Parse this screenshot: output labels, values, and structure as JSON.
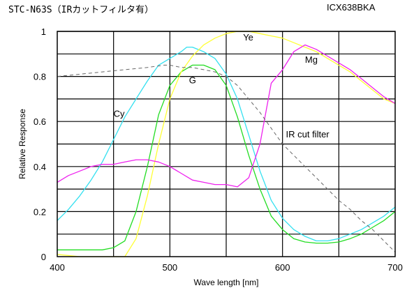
{
  "header": {
    "left_title": "STC-N63S（IRカットフィルタ有）",
    "right_title": "ICX638BKA"
  },
  "chart_data": {
    "type": "line",
    "title": "STC-N63S（IRカットフィルタ有）",
    "subtitle": "ICX638BKA",
    "xlabel": "Wave length [nm]",
    "ylabel": "Relative Response",
    "xlim": [
      400,
      700
    ],
    "ylim": [
      0,
      1
    ],
    "x_ticks": [
      400,
      500,
      600,
      700
    ],
    "y_ticks": [
      0,
      0.2,
      0.4,
      0.6,
      0.8,
      1
    ],
    "y_tick_labels": [
      "0",
      "0.2",
      "0.4",
      "0.6",
      "0.8",
      "1"
    ],
    "grid": true,
    "legend": "none",
    "series": [
      {
        "name": "Cy",
        "color": "#33e0f0",
        "dash": "solid",
        "label_at": [
          450,
          0.62
        ],
        "points": [
          [
            400,
            0.16
          ],
          [
            410,
            0.21
          ],
          [
            420,
            0.27
          ],
          [
            430,
            0.34
          ],
          [
            440,
            0.42
          ],
          [
            450,
            0.52
          ],
          [
            460,
            0.62
          ],
          [
            470,
            0.7
          ],
          [
            480,
            0.78
          ],
          [
            490,
            0.85
          ],
          [
            500,
            0.88
          ],
          [
            510,
            0.91
          ],
          [
            515,
            0.93
          ],
          [
            520,
            0.93
          ],
          [
            530,
            0.91
          ],
          [
            540,
            0.88
          ],
          [
            550,
            0.81
          ],
          [
            560,
            0.7
          ],
          [
            570,
            0.54
          ],
          [
            580,
            0.38
          ],
          [
            590,
            0.25
          ],
          [
            600,
            0.17
          ],
          [
            610,
            0.12
          ],
          [
            620,
            0.09
          ],
          [
            630,
            0.07
          ],
          [
            640,
            0.07
          ],
          [
            650,
            0.08
          ],
          [
            660,
            0.1
          ],
          [
            670,
            0.12
          ],
          [
            680,
            0.15
          ],
          [
            690,
            0.18
          ],
          [
            700,
            0.22
          ]
        ]
      },
      {
        "name": "G",
        "color": "#22dd22",
        "dash": "solid",
        "label_at": [
          517,
          0.77
        ],
        "points": [
          [
            400,
            0.03
          ],
          [
            420,
            0.03
          ],
          [
            440,
            0.03
          ],
          [
            450,
            0.04
          ],
          [
            460,
            0.07
          ],
          [
            470,
            0.2
          ],
          [
            480,
            0.4
          ],
          [
            490,
            0.63
          ],
          [
            500,
            0.76
          ],
          [
            510,
            0.82
          ],
          [
            520,
            0.85
          ],
          [
            530,
            0.85
          ],
          [
            540,
            0.83
          ],
          [
            550,
            0.76
          ],
          [
            560,
            0.62
          ],
          [
            570,
            0.45
          ],
          [
            580,
            0.3
          ],
          [
            590,
            0.18
          ],
          [
            600,
            0.12
          ],
          [
            610,
            0.08
          ],
          [
            620,
            0.065
          ],
          [
            630,
            0.06
          ],
          [
            640,
            0.06
          ],
          [
            650,
            0.065
          ],
          [
            660,
            0.08
          ],
          [
            670,
            0.1
          ],
          [
            680,
            0.13
          ],
          [
            690,
            0.16
          ],
          [
            700,
            0.2
          ]
        ]
      },
      {
        "name": "Ye",
        "color": "#ffff33",
        "dash": "solid",
        "label_at": [
          565,
          0.96
        ],
        "points": [
          [
            400,
            0.01
          ],
          [
            420,
            0.0
          ],
          [
            440,
            0.0
          ],
          [
            460,
            0.0
          ],
          [
            470,
            0.08
          ],
          [
            480,
            0.27
          ],
          [
            490,
            0.5
          ],
          [
            500,
            0.7
          ],
          [
            510,
            0.82
          ],
          [
            520,
            0.89
          ],
          [
            530,
            0.94
          ],
          [
            540,
            0.97
          ],
          [
            550,
            0.99
          ],
          [
            560,
            1.0
          ],
          [
            570,
            1.0
          ],
          [
            580,
            0.99
          ],
          [
            590,
            0.98
          ],
          [
            600,
            0.97
          ],
          [
            610,
            0.95
          ],
          [
            620,
            0.93
          ],
          [
            630,
            0.91
          ],
          [
            640,
            0.88
          ],
          [
            650,
            0.85
          ],
          [
            660,
            0.82
          ],
          [
            670,
            0.78
          ],
          [
            680,
            0.74
          ],
          [
            690,
            0.7
          ],
          [
            700,
            0.68
          ]
        ]
      },
      {
        "name": "Mg",
        "color": "#ee22ee",
        "dash": "solid",
        "label_at": [
          620,
          0.86
        ],
        "points": [
          [
            400,
            0.33
          ],
          [
            410,
            0.36
          ],
          [
            420,
            0.38
          ],
          [
            430,
            0.4
          ],
          [
            440,
            0.41
          ],
          [
            450,
            0.41
          ],
          [
            460,
            0.42
          ],
          [
            470,
            0.43
          ],
          [
            480,
            0.43
          ],
          [
            490,
            0.42
          ],
          [
            500,
            0.4
          ],
          [
            510,
            0.37
          ],
          [
            520,
            0.34
          ],
          [
            530,
            0.33
          ],
          [
            540,
            0.32
          ],
          [
            550,
            0.32
          ],
          [
            560,
            0.31
          ],
          [
            570,
            0.35
          ],
          [
            580,
            0.5
          ],
          [
            590,
            0.77
          ],
          [
            600,
            0.83
          ],
          [
            610,
            0.91
          ],
          [
            620,
            0.94
          ],
          [
            630,
            0.92
          ],
          [
            640,
            0.89
          ],
          [
            650,
            0.86
          ],
          [
            660,
            0.83
          ],
          [
            670,
            0.79
          ],
          [
            680,
            0.75
          ],
          [
            690,
            0.71
          ],
          [
            700,
            0.68
          ]
        ]
      },
      {
        "name": "IR cut filter",
        "color": "#666666",
        "dash": "dashed",
        "label_at": [
          603,
          0.53
        ],
        "points": [
          [
            400,
            0.8
          ],
          [
            420,
            0.81
          ],
          [
            440,
            0.82
          ],
          [
            460,
            0.83
          ],
          [
            480,
            0.84
          ],
          [
            495,
            0.85
          ],
          [
            500,
            0.85
          ],
          [
            510,
            0.84
          ],
          [
            520,
            0.84
          ],
          [
            530,
            0.83
          ],
          [
            540,
            0.82
          ],
          [
            550,
            0.8
          ],
          [
            560,
            0.76
          ],
          [
            570,
            0.7
          ],
          [
            580,
            0.64
          ],
          [
            590,
            0.57
          ],
          [
            600,
            0.5
          ],
          [
            610,
            0.45
          ],
          [
            620,
            0.4
          ],
          [
            630,
            0.35
          ],
          [
            640,
            0.3
          ],
          [
            650,
            0.25
          ],
          [
            660,
            0.21
          ],
          [
            670,
            0.16
          ],
          [
            680,
            0.12
          ],
          [
            690,
            0.07
          ],
          [
            700,
            0.02
          ]
        ]
      }
    ]
  }
}
